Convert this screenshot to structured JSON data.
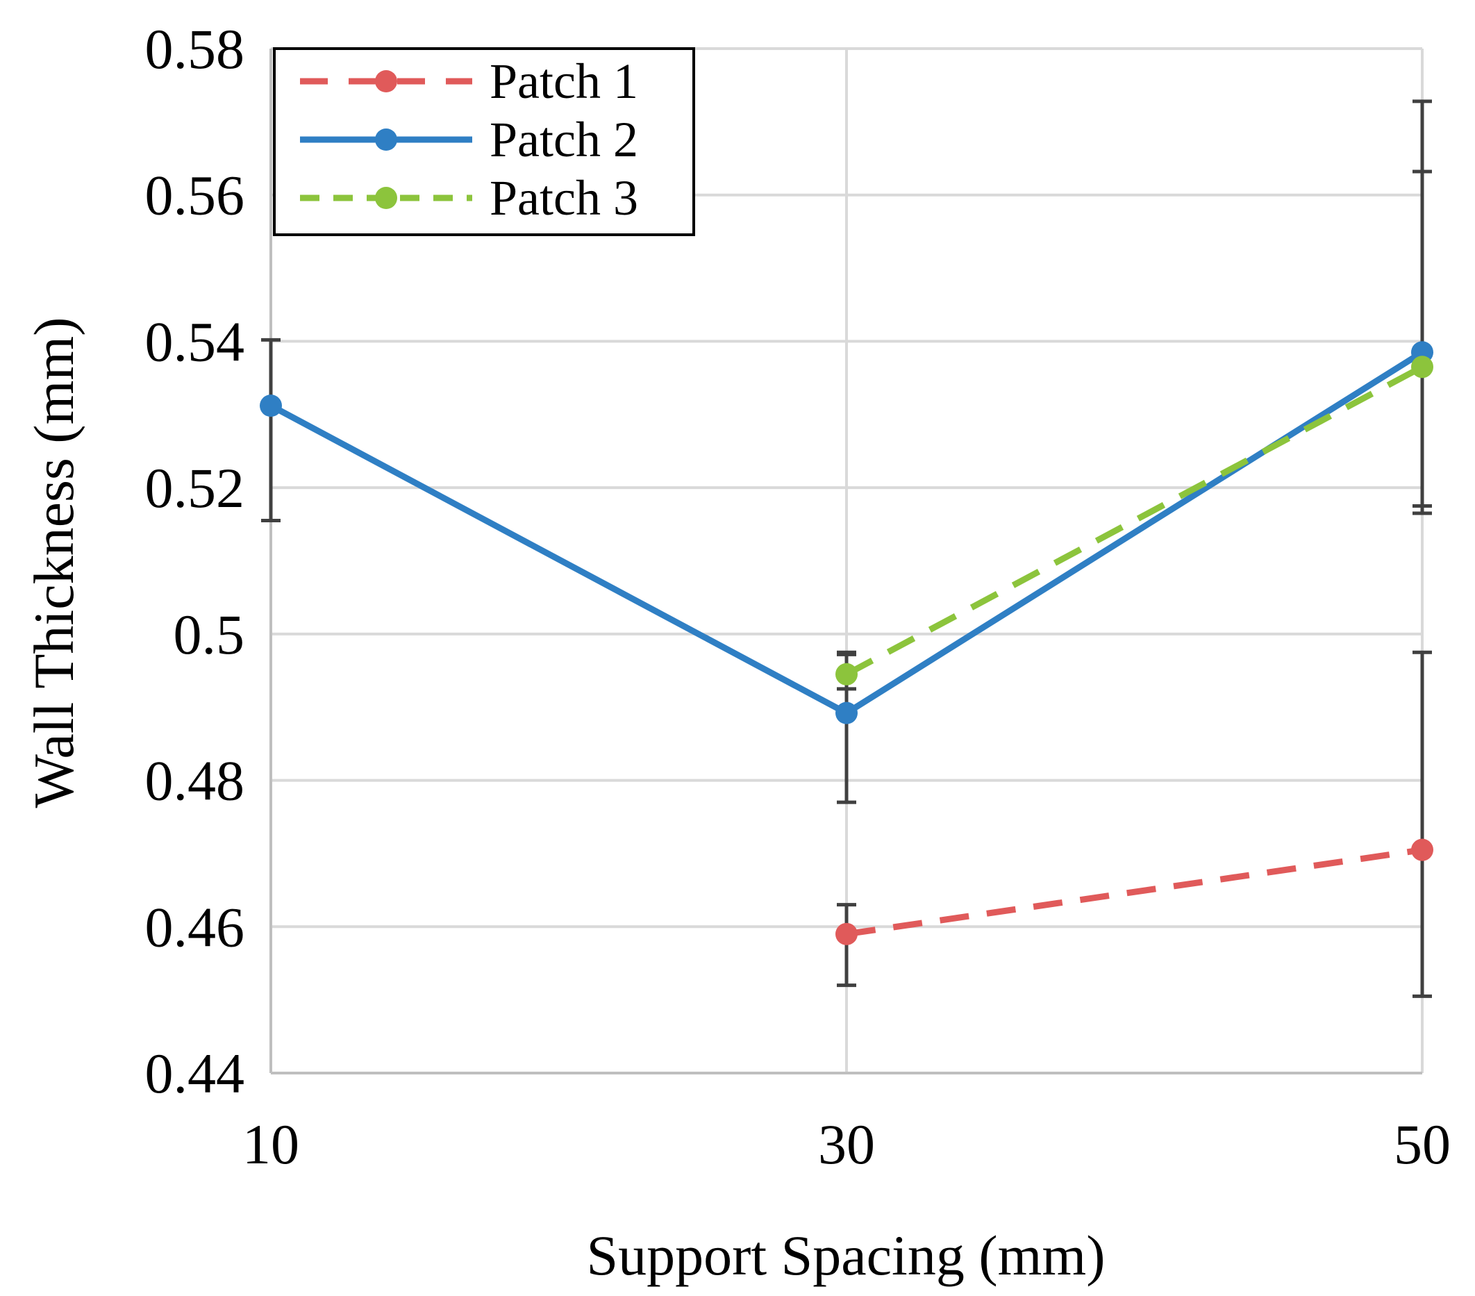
{
  "chart_data": {
    "type": "line",
    "title": "",
    "xlabel": "Support Spacing (mm)",
    "ylabel": "Wall Thickness (mm)",
    "x": [
      10,
      30,
      50
    ],
    "xticks": [
      "10",
      "30",
      "50"
    ],
    "ylim": [
      0.44,
      0.58
    ],
    "yticks": [
      "0.44",
      "0.46",
      "0.48",
      "0.5",
      "0.52",
      "0.54",
      "0.56",
      "0.58"
    ],
    "grid": true,
    "legend_position": "top-left",
    "series": [
      {
        "name": "Patch 1",
        "color": "#e05a5a",
        "style": "dashed",
        "points": [
          {
            "x": 30,
            "y": 0.459,
            "err_low": 0.452,
            "err_high": 0.463
          },
          {
            "x": 50,
            "y": 0.4705,
            "err_low": 0.4505,
            "err_high": 0.4975
          }
        ]
      },
      {
        "name": "Patch 2",
        "color": "#2f7fc4",
        "style": "solid",
        "points": [
          {
            "x": 10,
            "y": 0.5312,
            "err_low": 0.5155,
            "err_high": 0.5402
          },
          {
            "x": 30,
            "y": 0.4892,
            "err_low": 0.477,
            "err_high": 0.4972
          },
          {
            "x": 50,
            "y": 0.5385,
            "err_low": 0.5175,
            "err_high": 0.5632
          }
        ]
      },
      {
        "name": "Patch 3",
        "color": "#8cc43c",
        "style": "dashed",
        "points": [
          {
            "x": 30,
            "y": 0.4945,
            "err_low": 0.4925,
            "err_high": 0.4975
          },
          {
            "x": 50,
            "y": 0.5365,
            "err_low": 0.5165,
            "err_high": 0.5728
          }
        ]
      }
    ]
  }
}
